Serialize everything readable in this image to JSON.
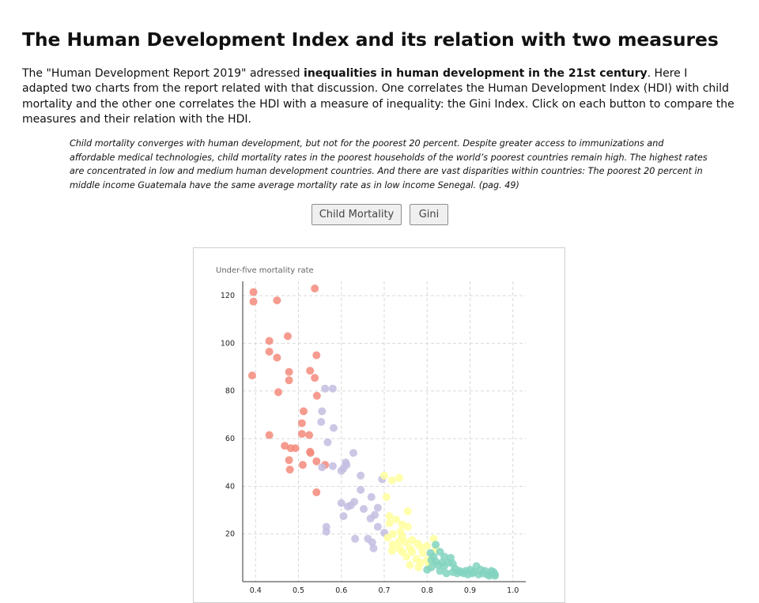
{
  "page": {
    "title": "The Human Development Index and its relation with two measures",
    "intro_before": "The \"Human Development Report 2019\" adressed ",
    "intro_bold": "inequalities in human development in the 21st century",
    "intro_after": ". Here I adapted two charts from the report related with that discussion. One correlates the Human Development Index (HDI) with child mortality and the other one correlates the HDI with a measure of inequality: the Gini Index. Click on each button to compare the measures and their relation with the HDI.",
    "quote": "Child mortality converges with human development, but not for the poorest 20 percent. Despite greater access to immunizations and affordable medical technologies, child mortality rates in the poorest households of the world’s poorest countries remain high. The highest rates are concentrated in low and medium human development countries. And there are vast disparities within countries: The poorest 20 percent in middle income Guatemala have the same average mortality rate as in low income Senegal. (pag. 49)"
  },
  "buttons": {
    "child_mortality": "Child Mortality",
    "gini": "Gini"
  },
  "colors": {
    "low": "#f4897b",
    "medium": "#c3bde0",
    "high": "#ffff9e",
    "very_high": "#83d3c0",
    "grid": "#d9d9d9"
  },
  "chart_data": {
    "type": "scatter",
    "title": "",
    "xlabel": "",
    "ylabel": "Under-five mortality rate",
    "xlim": [
      0.37,
      1.03
    ],
    "ylim": [
      0,
      126
    ],
    "x_ticks": [
      "0.4",
      "0.5",
      "0.6",
      "0.7",
      "0.8",
      "0.9",
      "1.0"
    ],
    "y_ticks": [
      "20",
      "40",
      "60",
      "80",
      "100",
      "120"
    ],
    "grid": true,
    "series": [
      {
        "color_key": "low",
        "points": [
          [
            0.395,
            121.5
          ],
          [
            0.395,
            117.5
          ],
          [
            0.45,
            118.0
          ],
          [
            0.538,
            123.0
          ],
          [
            0.475,
            103.0
          ],
          [
            0.432,
            101.0
          ],
          [
            0.432,
            96.5
          ],
          [
            0.45,
            94.0
          ],
          [
            0.542,
            95.0
          ],
          [
            0.392,
            86.5
          ],
          [
            0.478,
            88.0
          ],
          [
            0.478,
            84.5
          ],
          [
            0.527,
            88.5
          ],
          [
            0.538,
            85.5
          ],
          [
            0.453,
            79.5
          ],
          [
            0.543,
            78.0
          ],
          [
            0.512,
            71.5
          ],
          [
            0.508,
            66.5
          ],
          [
            0.508,
            62.0
          ],
          [
            0.525,
            61.5
          ],
          [
            0.432,
            61.5
          ],
          [
            0.468,
            57.0
          ],
          [
            0.482,
            56.0
          ],
          [
            0.493,
            56.0
          ],
          [
            0.527,
            54.5
          ],
          [
            0.528,
            54.0
          ],
          [
            0.478,
            51.0
          ],
          [
            0.542,
            50.5
          ],
          [
            0.51,
            49.0
          ],
          [
            0.48,
            47.0
          ],
          [
            0.562,
            49.0
          ],
          [
            0.542,
            37.5
          ]
        ]
      },
      {
        "color_key": "medium",
        "points": [
          [
            0.562,
            81.0
          ],
          [
            0.58,
            81.0
          ],
          [
            0.555,
            71.5
          ],
          [
            0.553,
            67.0
          ],
          [
            0.582,
            64.5
          ],
          [
            0.568,
            58.5
          ],
          [
            0.628,
            54.0
          ],
          [
            0.61,
            50.0
          ],
          [
            0.612,
            49.0
          ],
          [
            0.605,
            47.5
          ],
          [
            0.6,
            46.5
          ],
          [
            0.555,
            48.0
          ],
          [
            0.58,
            48.5
          ],
          [
            0.645,
            44.5
          ],
          [
            0.695,
            43.0
          ],
          [
            0.645,
            38.5
          ],
          [
            0.67,
            35.5
          ],
          [
            0.6,
            33.0
          ],
          [
            0.63,
            33.5
          ],
          [
            0.622,
            32.0
          ],
          [
            0.652,
            30.5
          ],
          [
            0.685,
            31.0
          ],
          [
            0.615,
            31.5
          ],
          [
            0.678,
            28.0
          ],
          [
            0.605,
            27.5
          ],
          [
            0.668,
            26.5
          ],
          [
            0.685,
            23.0
          ],
          [
            0.565,
            23.0
          ],
          [
            0.565,
            21.0
          ],
          [
            0.7,
            20.5
          ],
          [
            0.632,
            18.0
          ],
          [
            0.662,
            18.0
          ],
          [
            0.672,
            16.5
          ],
          [
            0.675,
            14.0
          ]
        ]
      },
      {
        "color_key": "high",
        "points": [
          [
            0.7,
            44.5
          ],
          [
            0.718,
            42.5
          ],
          [
            0.735,
            43.5
          ],
          [
            0.705,
            35.5
          ],
          [
            0.755,
            29.5
          ],
          [
            0.712,
            27.5
          ],
          [
            0.728,
            26.0
          ],
          [
            0.712,
            24.5
          ],
          [
            0.742,
            24.0
          ],
          [
            0.755,
            23.0
          ],
          [
            0.738,
            21.0
          ],
          [
            0.72,
            20.0
          ],
          [
            0.742,
            19.0
          ],
          [
            0.708,
            18.5
          ],
          [
            0.735,
            17.0
          ],
          [
            0.75,
            16.5
          ],
          [
            0.765,
            17.5
          ],
          [
            0.778,
            16.0
          ],
          [
            0.72,
            15.5
          ],
          [
            0.735,
            14.0
          ],
          [
            0.76,
            14.0
          ],
          [
            0.785,
            14.5
          ],
          [
            0.8,
            15.0
          ],
          [
            0.815,
            18.0
          ],
          [
            0.718,
            13.0
          ],
          [
            0.742,
            12.5
          ],
          [
            0.765,
            12.5
          ],
          [
            0.79,
            12.0
          ],
          [
            0.752,
            10.5
          ],
          [
            0.775,
            9.5
          ],
          [
            0.8,
            9.0
          ],
          [
            0.82,
            13.5
          ],
          [
            0.785,
            8.0
          ],
          [
            0.805,
            7.0
          ],
          [
            0.76,
            7.0
          ],
          [
            0.78,
            6.0
          ]
        ]
      },
      {
        "color_key": "very_high",
        "points": [
          [
            0.82,
            15.5
          ],
          [
            0.808,
            12.0
          ],
          [
            0.83,
            12.5
          ],
          [
            0.815,
            10.5
          ],
          [
            0.84,
            10.5
          ],
          [
            0.855,
            10.0
          ],
          [
            0.81,
            9.0
          ],
          [
            0.82,
            8.5
          ],
          [
            0.835,
            8.0
          ],
          [
            0.85,
            8.0
          ],
          [
            0.86,
            7.5
          ],
          [
            0.825,
            7.0
          ],
          [
            0.84,
            6.5
          ],
          [
            0.81,
            6.0
          ],
          [
            0.865,
            5.5
          ],
          [
            0.875,
            4.5
          ],
          [
            0.89,
            4.5
          ],
          [
            0.9,
            5.0
          ],
          [
            0.915,
            6.5
          ],
          [
            0.925,
            5.0
          ],
          [
            0.935,
            4.5
          ],
          [
            0.95,
            4.5
          ],
          [
            0.955,
            4.0
          ],
          [
            0.87,
            3.5
          ],
          [
            0.885,
            3.5
          ],
          [
            0.895,
            3.0
          ],
          [
            0.905,
            3.5
          ],
          [
            0.92,
            3.0
          ],
          [
            0.94,
            3.0
          ],
          [
            0.95,
            3.5
          ],
          [
            0.958,
            3.0
          ],
          [
            0.93,
            3.5
          ],
          [
            0.91,
            4.0
          ],
          [
            0.88,
            4.0
          ],
          [
            0.83,
            4.5
          ],
          [
            0.8,
            5.0
          ],
          [
            0.845,
            3.5
          ],
          [
            0.86,
            4.0
          ],
          [
            0.945,
            2.5
          ],
          [
            0.958,
            2.5
          ]
        ]
      }
    ]
  }
}
